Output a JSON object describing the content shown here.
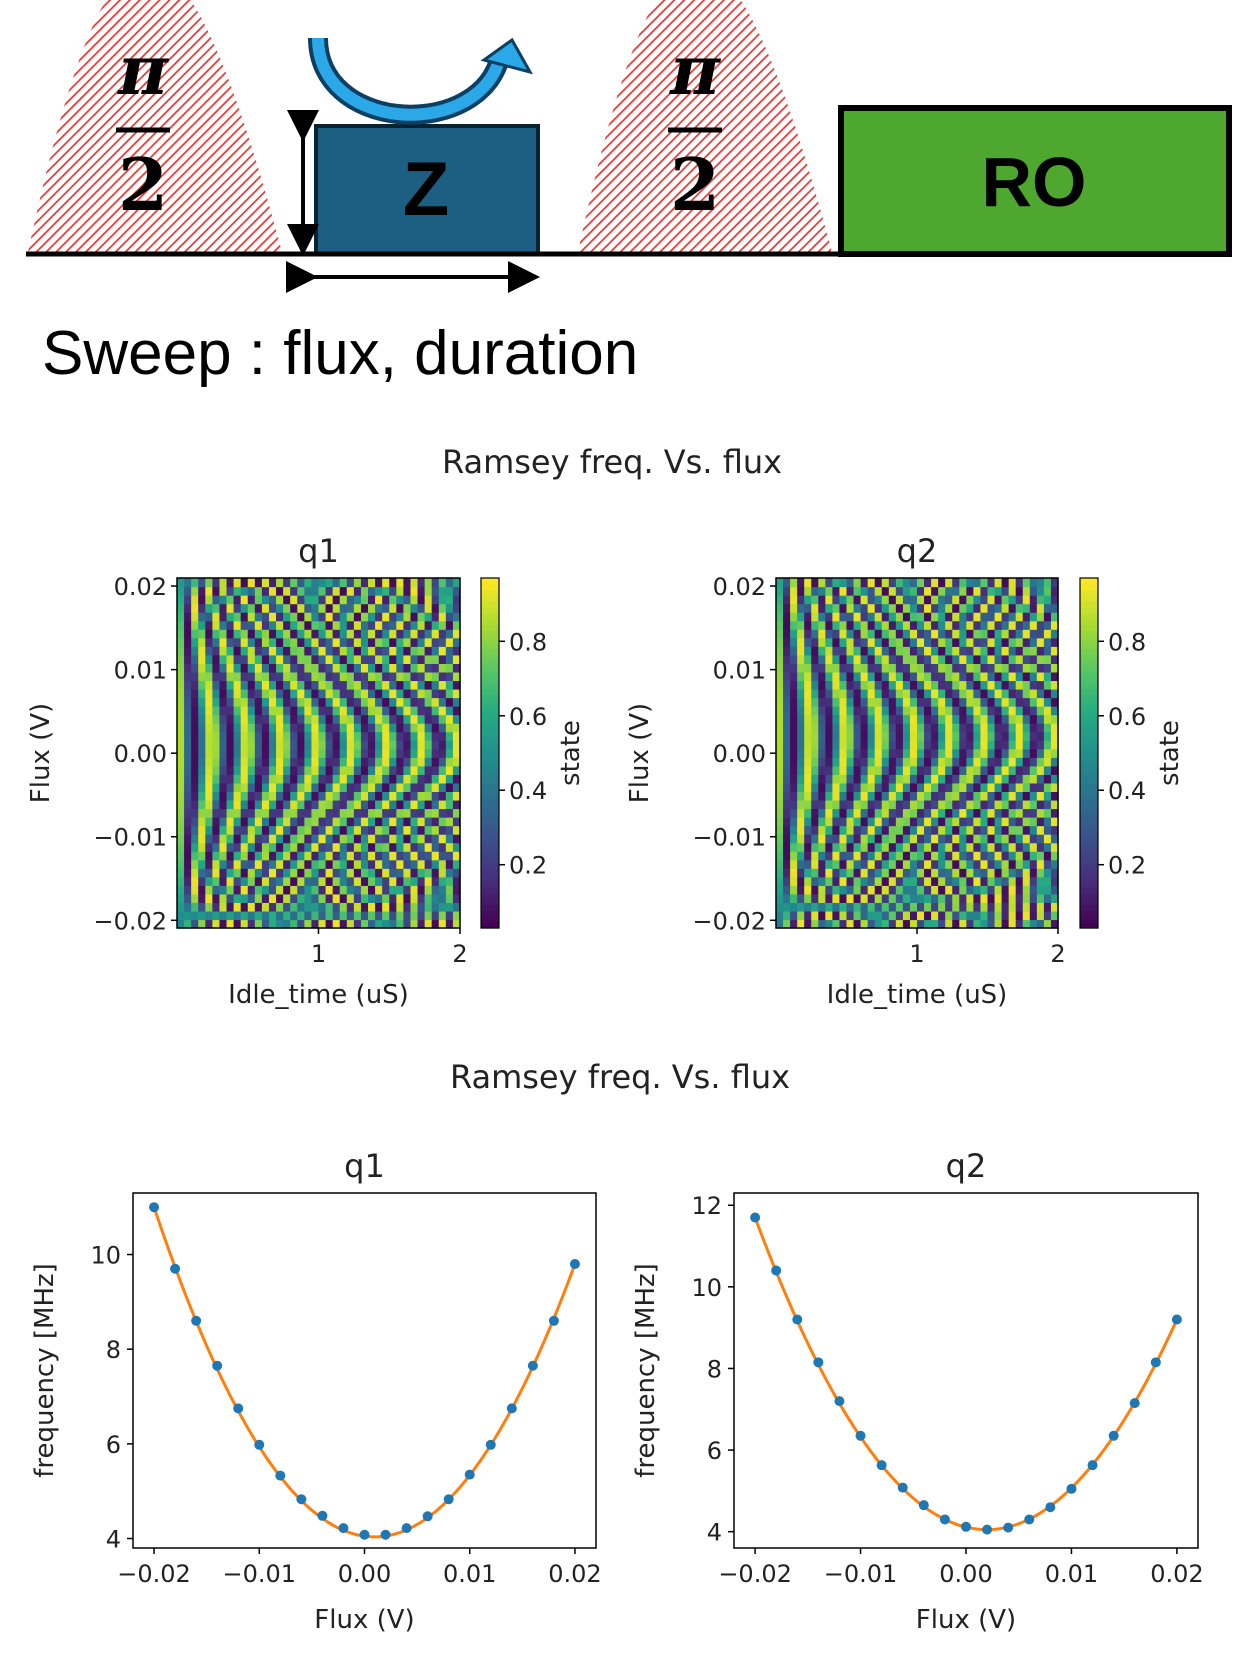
{
  "sequence": {
    "pulse1": {
      "numerator": "π",
      "denominator": "2"
    },
    "z_label": "Z",
    "pulse2": {
      "numerator": "π",
      "denominator": "2"
    },
    "ro_label": "RO",
    "colors": {
      "pulse_hatch": "#e53935",
      "z_fill": "#1c5f82",
      "ro_fill": "#4ea72e",
      "arrow": "#1e9fe0"
    }
  },
  "sweep_text": "Sweep : flux, duration",
  "chart_data": [
    {
      "type": "heatmap",
      "suptitle": "Ramsey freq. Vs. flux",
      "title": "q1",
      "xlabel": "Idle_time (uS)",
      "ylabel": "Flux (V)",
      "xlim": [
        0.0,
        2.0
      ],
      "ylim": [
        -0.02,
        0.02
      ],
      "xticks": [
        1,
        2
      ],
      "yticks": [
        0.02,
        0.01,
        0.0,
        -0.01,
        -0.02
      ],
      "ytick_labels": [
        "0.02",
        "0.01",
        "0.00",
        "−0.01",
        "−0.02"
      ],
      "colorbar": {
        "label": "state",
        "ticks": [
          0.2,
          0.4,
          0.6,
          0.8
        ],
        "range": [
          0.03,
          0.97
        ],
        "colormap": "viridis"
      },
      "model": "state = 0.5 + 0.45*cos(2*pi*f(flux)*t), f in MHz, t in uS",
      "flux_steps": 41,
      "time_steps": 40,
      "freq_vs_flux_MHz": {
        "x": [
          -0.02,
          0.0,
          0.02
        ],
        "y": [
          11.0,
          4.05,
          9.8
        ]
      }
    },
    {
      "type": "heatmap",
      "title": "q2",
      "xlabel": "Idle_time (uS)",
      "ylabel": "Flux (V)",
      "xlim": [
        0.0,
        2.0
      ],
      "ylim": [
        -0.02,
        0.02
      ],
      "xticks": [
        1,
        2
      ],
      "yticks": [
        0.02,
        0.01,
        0.0,
        -0.01,
        -0.02
      ],
      "ytick_labels": [
        "0.02",
        "0.01",
        "0.00",
        "−0.01",
        "−0.02"
      ],
      "colorbar": {
        "label": "state",
        "ticks": [
          0.2,
          0.4,
          0.6,
          0.8
        ],
        "range": [
          0.03,
          0.97
        ],
        "colormap": "viridis"
      },
      "model": "state = 0.5 + 0.45*cos(2*pi*f(flux)*t), f in MHz, t in uS",
      "flux_steps": 41,
      "time_steps": 40,
      "freq_vs_flux_MHz": {
        "x": [
          -0.02,
          0.002,
          0.02
        ],
        "y": [
          11.7,
          4.05,
          9.2
        ]
      }
    },
    {
      "type": "scatter",
      "suptitle": "Ramsey freq. Vs. flux",
      "title": "q1",
      "xlabel": "Flux (V)",
      "ylabel": "frequency [MHz]",
      "xlim": [
        -0.022,
        0.022
      ],
      "ylim": [
        3.8,
        11.3
      ],
      "xticks": [
        -0.02,
        -0.01,
        0.0,
        0.01,
        0.02
      ],
      "xtick_labels": [
        "−0.02",
        "−0.01",
        "0.00",
        "0.01",
        "0.02"
      ],
      "yticks": [
        4,
        6,
        8,
        10
      ],
      "x": [
        -0.02,
        -0.018,
        -0.016,
        -0.014,
        -0.012,
        -0.01,
        -0.008,
        -0.006,
        -0.004,
        -0.002,
        0.0,
        0.002,
        0.004,
        0.006,
        0.008,
        0.01,
        0.012,
        0.014,
        0.016,
        0.018,
        0.02
      ],
      "y": [
        11.0,
        9.7,
        8.6,
        7.65,
        6.75,
        5.98,
        5.33,
        4.83,
        4.48,
        4.22,
        4.08,
        4.08,
        4.22,
        4.47,
        4.83,
        5.35,
        5.98,
        6.75,
        7.65,
        8.6,
        9.8
      ],
      "fit": {
        "type": "quadratic",
        "x": [
          -0.02,
          0.0,
          0.02
        ],
        "y": [
          11.0,
          4.05,
          9.8
        ]
      },
      "colors": {
        "points": "#1f77b4",
        "fit": "#ff7f0e"
      }
    },
    {
      "type": "scatter",
      "title": "q2",
      "xlabel": "Flux (V)",
      "ylabel": "frequency [MHz]",
      "xlim": [
        -0.022,
        0.022
      ],
      "ylim": [
        3.6,
        12.3
      ],
      "xticks": [
        -0.02,
        -0.01,
        0.0,
        0.01,
        0.02
      ],
      "xtick_labels": [
        "−0.02",
        "−0.01",
        "0.00",
        "0.01",
        "0.02"
      ],
      "yticks": [
        4,
        6,
        8,
        10,
        12
      ],
      "x": [
        -0.02,
        -0.018,
        -0.016,
        -0.014,
        -0.012,
        -0.01,
        -0.008,
        -0.006,
        -0.004,
        -0.002,
        0.0,
        0.002,
        0.004,
        0.006,
        0.008,
        0.01,
        0.012,
        0.014,
        0.016,
        0.018,
        0.02
      ],
      "y": [
        11.7,
        10.4,
        9.2,
        8.15,
        7.2,
        6.35,
        5.63,
        5.08,
        4.65,
        4.3,
        4.12,
        4.05,
        4.1,
        4.3,
        4.6,
        5.05,
        5.63,
        6.35,
        7.15,
        8.15,
        9.2
      ],
      "fit": {
        "type": "quadratic",
        "x": [
          -0.02,
          0.002,
          0.02
        ],
        "y": [
          11.7,
          4.05,
          9.2
        ]
      },
      "colors": {
        "points": "#1f77b4",
        "fit": "#ff7f0e"
      }
    }
  ]
}
